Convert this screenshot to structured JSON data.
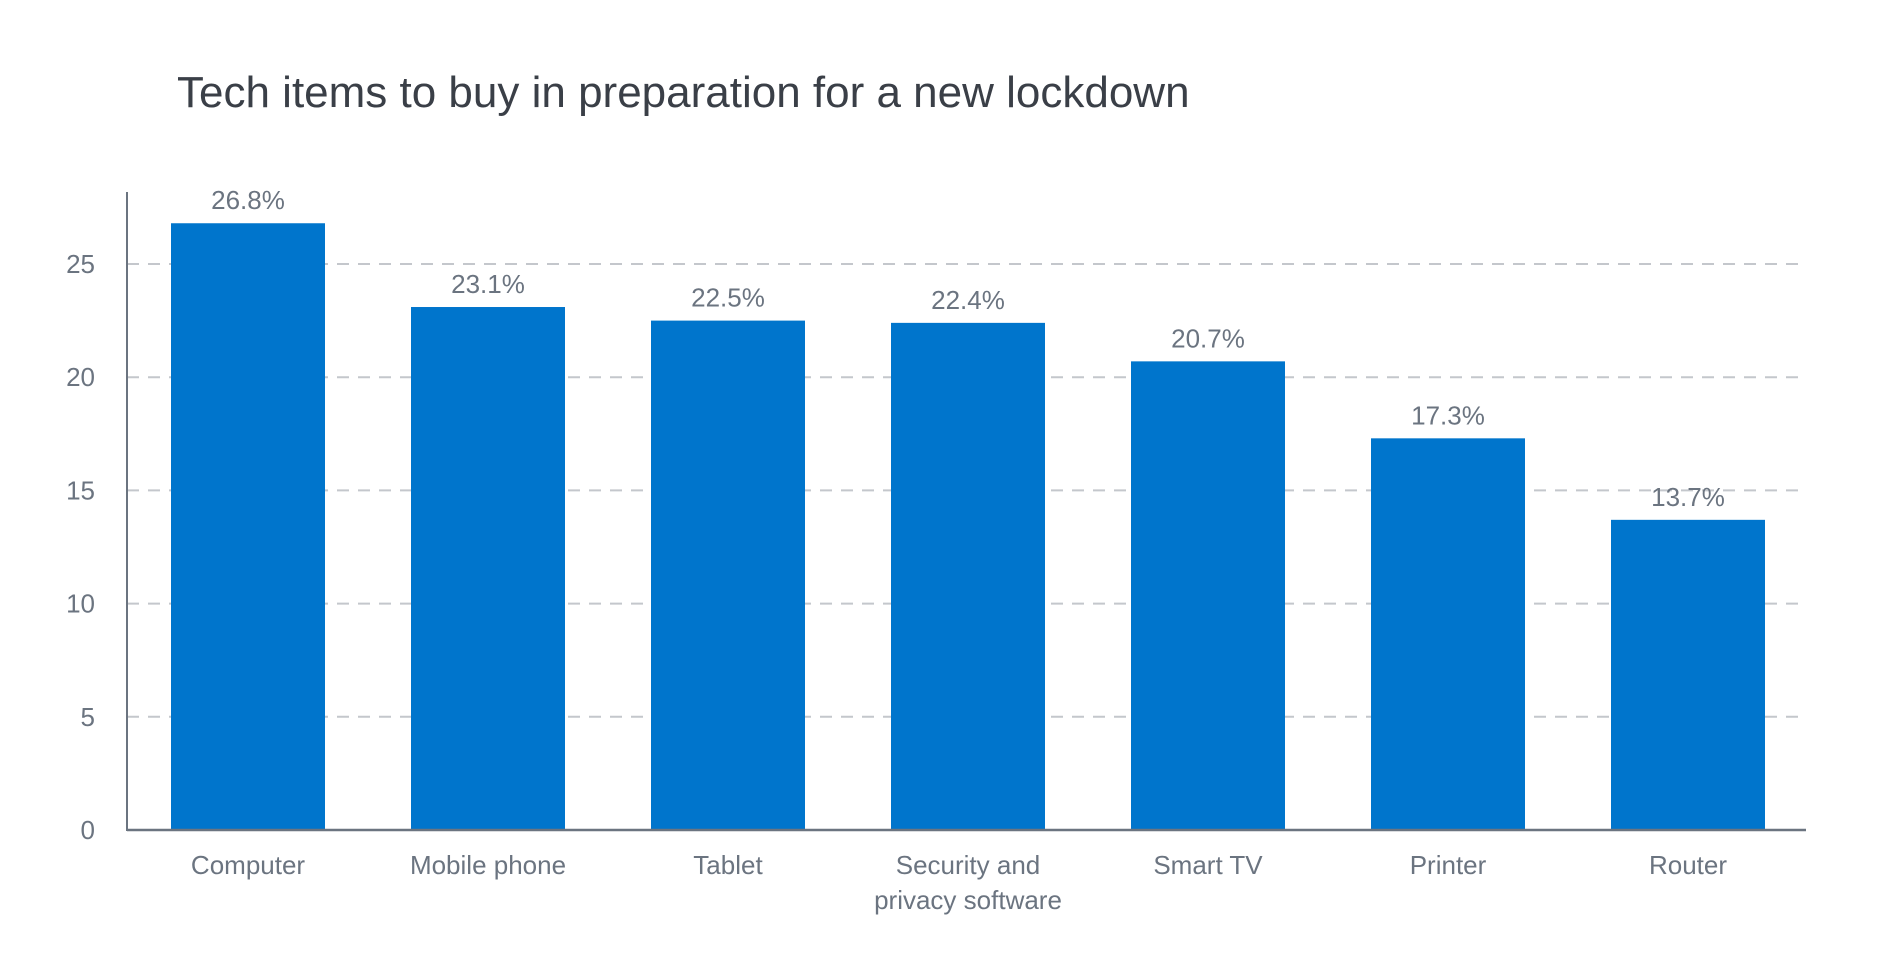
{
  "chart_data": {
    "type": "bar",
    "title": "Tech items to buy in preparation for a new lockdown",
    "categories": [
      "Computer",
      "Mobile phone",
      "Tablet",
      "Security and privacy software",
      "Smart TV",
      "Printer",
      "Router"
    ],
    "category_lines": [
      [
        "Computer"
      ],
      [
        "Mobile phone"
      ],
      [
        "Tablet"
      ],
      [
        "Security and",
        "privacy software"
      ],
      [
        "Smart TV"
      ],
      [
        "Printer"
      ],
      [
        "Router"
      ]
    ],
    "values": [
      26.8,
      23.1,
      22.5,
      22.4,
      20.7,
      17.3,
      13.7
    ],
    "data_labels": [
      "26.8%",
      "23.1%",
      "22.5%",
      "22.4%",
      "20.7%",
      "17.3%",
      "13.7%"
    ],
    "yticks": [
      "0",
      "5",
      "10",
      "15",
      "20",
      "25"
    ],
    "ylim": [
      0,
      28
    ],
    "xlabel": "",
    "ylabel": "",
    "grid": true,
    "legend": "none",
    "colors": {
      "bar": "#0075cc",
      "grid": "#c4c7cc",
      "axis": "#6b7480"
    }
  }
}
